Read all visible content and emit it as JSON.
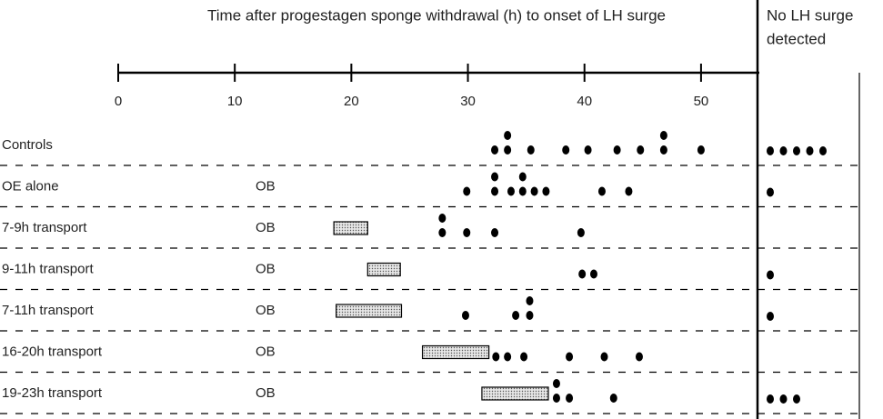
{
  "chart_data": {
    "type": "dot",
    "title": "Time after progestagen sponge withdrawal (h) to onset of LH surge",
    "no_surge_label": [
      "No LH surge",
      "detected"
    ],
    "xlim": [
      0,
      55
    ],
    "xticks": [
      0,
      10,
      20,
      30,
      40,
      50
    ],
    "rows": [
      {
        "name": "Controls",
        "values": [
          32.3,
          33.4,
          33.4,
          35.4,
          38.4,
          40.3,
          42.8,
          44.8,
          46.8,
          46.8,
          50
        ],
        "no_surge": 5
      },
      {
        "name": "OE alone",
        "note": "OB",
        "values": [
          29.9,
          32.3,
          32.3,
          33.7,
          34.7,
          34.7,
          35.7,
          36.7,
          41.5,
          43.8
        ],
        "no_surge": 1
      },
      {
        "name": "7-9h transport",
        "note": "OB",
        "transport": [
          18.5,
          21.4
        ],
        "values": [
          27.8,
          27.8,
          29.9,
          32.3,
          39.7
        ],
        "no_surge": 0
      },
      {
        "name": "9-11h transport",
        "note": "OB",
        "transport": [
          21.4,
          24.2
        ],
        "values": [
          39.8,
          40.8
        ],
        "no_surge": 1
      },
      {
        "name": "7-11h transport",
        "note": "OB",
        "transport": [
          18.7,
          24.3
        ],
        "values": [
          29.8,
          34.1,
          35.3,
          35.3
        ],
        "no_surge": 1
      },
      {
        "name": "16-20h transport",
        "note": "OB",
        "transport": [
          26.1,
          31.8
        ],
        "values": [
          32.4,
          33.4,
          34.8,
          38.7,
          41.7,
          44.7
        ],
        "no_surge": 0
      },
      {
        "name": "19-23h transport",
        "note": "OB",
        "transport": [
          31.2,
          36.9
        ],
        "values": [
          37.6,
          37.6,
          38.7,
          42.5
        ],
        "no_surge": 3
      }
    ]
  }
}
